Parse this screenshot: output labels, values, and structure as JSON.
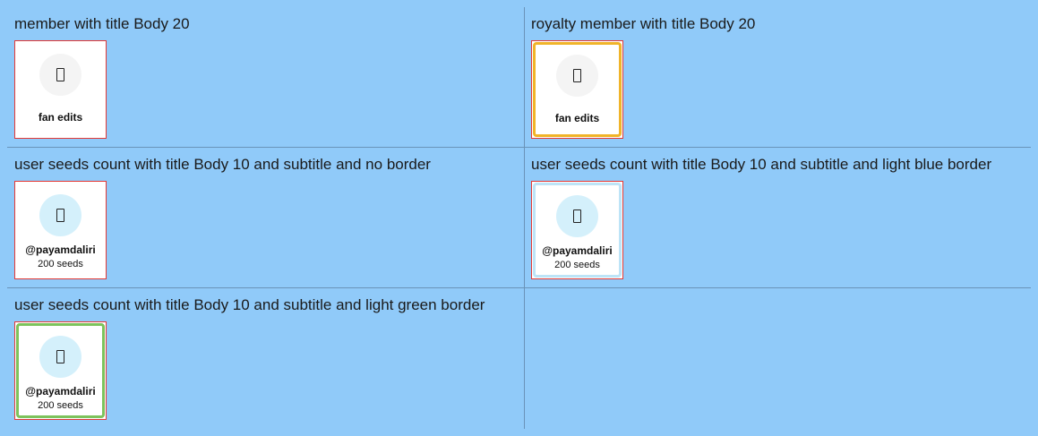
{
  "cells": [
    {
      "title": "member with title Body 20",
      "card": {
        "title": "fan edits",
        "icon": "placeholder-glyph-icon"
      }
    },
    {
      "title": "royalty member with title Body 20",
      "card": {
        "title": "fan edits",
        "icon": "placeholder-glyph-icon",
        "border_color": "#f0b429"
      }
    },
    {
      "title": "user seeds count with title Body 10 and subtitle and no border",
      "card": {
        "title": "@payamdaliri",
        "subtitle": "200 seeds",
        "icon": "placeholder-glyph-icon"
      }
    },
    {
      "title": "user seeds count with title Body 10 and subtitle and light blue border",
      "card": {
        "title": "@payamdaliri",
        "subtitle": "200 seeds",
        "icon": "placeholder-glyph-icon",
        "border_color": "#bde4f7"
      }
    },
    {
      "title": "user seeds count with title Body 10 and subtitle and light green border",
      "card": {
        "title": "@payamdaliri",
        "subtitle": "200 seeds",
        "icon": "placeholder-glyph-icon",
        "border_color": "#7cc35c"
      }
    }
  ],
  "colors": {
    "background": "#90caf9",
    "divider": "#6a93b8",
    "debug_outline": "#e53935",
    "icon_circle_gray": "#f4f4f4",
    "icon_circle_blue": "#d4f0fb"
  }
}
